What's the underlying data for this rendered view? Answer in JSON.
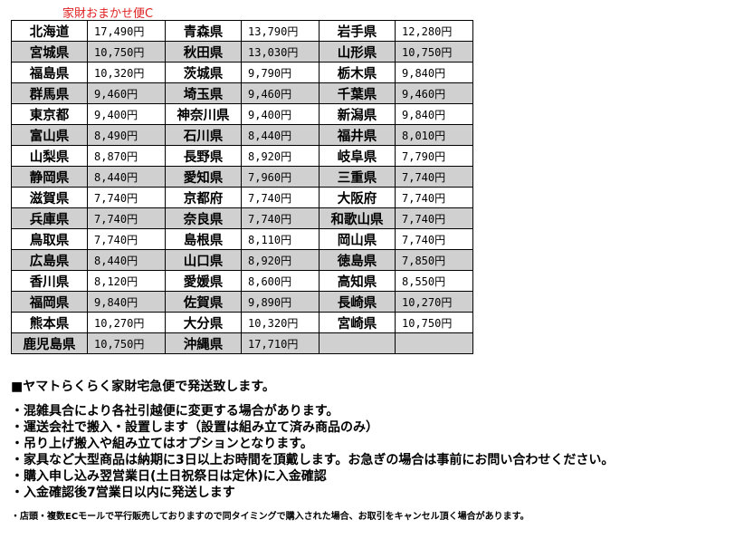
{
  "caption": "家財おまかせ便C",
  "rows": [
    [
      [
        "北海道",
        "17,490円"
      ],
      [
        "青森県",
        "13,790円"
      ],
      [
        "岩手県",
        "12,280円"
      ]
    ],
    [
      [
        "宮城県",
        "10,750円"
      ],
      [
        "秋田県",
        "13,030円"
      ],
      [
        "山形県",
        "10,750円"
      ]
    ],
    [
      [
        "福島県",
        "10,320円"
      ],
      [
        "茨城県",
        "9,790円"
      ],
      [
        "栃木県",
        "9,840円"
      ]
    ],
    [
      [
        "群馬県",
        "9,460円"
      ],
      [
        "埼玉県",
        "9,460円"
      ],
      [
        "千葉県",
        "9,460円"
      ]
    ],
    [
      [
        "東京都",
        "9,400円"
      ],
      [
        "神奈川県",
        "9,400円"
      ],
      [
        "新潟県",
        "9,840円"
      ]
    ],
    [
      [
        "富山県",
        "8,490円"
      ],
      [
        "石川県",
        "8,440円"
      ],
      [
        "福井県",
        "8,010円"
      ]
    ],
    [
      [
        "山梨県",
        "8,870円"
      ],
      [
        "長野県",
        "8,920円"
      ],
      [
        "岐阜県",
        "7,790円"
      ]
    ],
    [
      [
        "静岡県",
        "8,440円"
      ],
      [
        "愛知県",
        "7,960円"
      ],
      [
        "三重県",
        "7,740円"
      ]
    ],
    [
      [
        "滋賀県",
        "7,740円"
      ],
      [
        "京都府",
        "7,740円"
      ],
      [
        "大阪府",
        "7,740円"
      ]
    ],
    [
      [
        "兵庫県",
        "7,740円"
      ],
      [
        "奈良県",
        "7,740円"
      ],
      [
        "和歌山県",
        "7,740円"
      ]
    ],
    [
      [
        "鳥取県",
        "7,740円"
      ],
      [
        "島根県",
        "8,110円"
      ],
      [
        "岡山県",
        "7,740円"
      ]
    ],
    [
      [
        "広島県",
        "8,440円"
      ],
      [
        "山口県",
        "8,920円"
      ],
      [
        "徳島県",
        "7,850円"
      ]
    ],
    [
      [
        "香川県",
        "8,120円"
      ],
      [
        "愛媛県",
        "8,600円"
      ],
      [
        "高知県",
        "8,550円"
      ]
    ],
    [
      [
        "福岡県",
        "9,840円"
      ],
      [
        "佐賀県",
        "9,890円"
      ],
      [
        "長崎県",
        "10,270円"
      ]
    ],
    [
      [
        "熊本県",
        "10,270円"
      ],
      [
        "大分県",
        "10,320円"
      ],
      [
        "宮崎県",
        "10,750円"
      ]
    ],
    [
      [
        "鹿児島県",
        "10,750円"
      ],
      [
        "沖縄県",
        "17,710円"
      ],
      [
        "",
        ""
      ]
    ]
  ],
  "notes": {
    "heading": "■ヤマトらくらく家財宅急便で発送致します。",
    "bullets": [
      "・混雑具合により各社引越便に変更する場合があります。",
      "・運送会社で搬入・設置します（設置は組み立て済み商品のみ）",
      "・吊り上げ搬入や組み立てはオプションとなります。",
      "・家具など大型商品は納期に3日以上お時間を頂戴します。お急ぎの場合は事前にお問い合わせください。",
      "・購入申し込み翌営業日(土日祝祭日は定休)に入金確認",
      "・入金確認後7営業日以内に発送します"
    ],
    "small": "・店頭・複数ECモールで平行販売しておりますので同タイミングで購入された場合、お取引をキャンセル頂く場合があります。"
  },
  "colors": {
    "caption": "#e02020",
    "row_alt": "#d0d0d0"
  }
}
